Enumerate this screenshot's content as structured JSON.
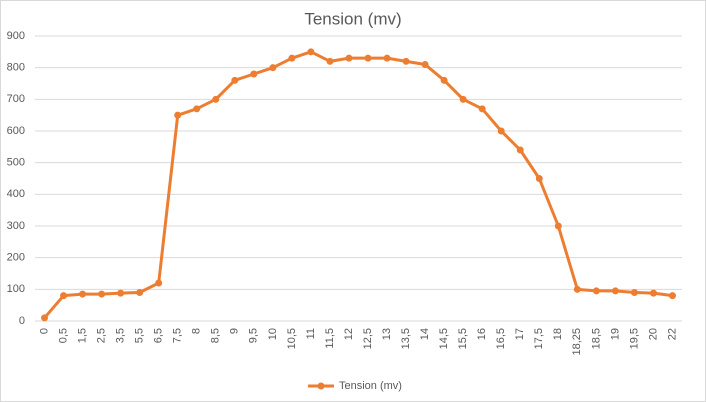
{
  "chart_data": {
    "type": "line",
    "title": "Tension (mv)",
    "categories": [
      "0",
      "0,5",
      "1,5",
      "2,5",
      "3,5",
      "5,5",
      "6,5",
      "7,5",
      "8",
      "8,5",
      "9",
      "9,5",
      "10",
      "10,5",
      "11",
      "11,5",
      "12",
      "12,5",
      "13",
      "13,5",
      "14",
      "14,5",
      "15,5",
      "16",
      "16,5",
      "17",
      "17,5",
      "18",
      "18,25",
      "18,5",
      "19",
      "19,5",
      "20",
      "22"
    ],
    "series": [
      {
        "name": "Tension (mv)",
        "color": "#ed7d31",
        "values": [
          10,
          80,
          85,
          85,
          88,
          90,
          120,
          650,
          670,
          700,
          760,
          780,
          800,
          830,
          850,
          820,
          830,
          830,
          830,
          820,
          810,
          760,
          700,
          670,
          600,
          540,
          450,
          300,
          100,
          95,
          95,
          90,
          88,
          80
        ]
      }
    ],
    "ylim": [
      0,
      900
    ],
    "yticks": [
      0,
      100,
      200,
      300,
      400,
      500,
      600,
      700,
      800,
      900
    ],
    "grid": true,
    "legend": "bottom"
  }
}
